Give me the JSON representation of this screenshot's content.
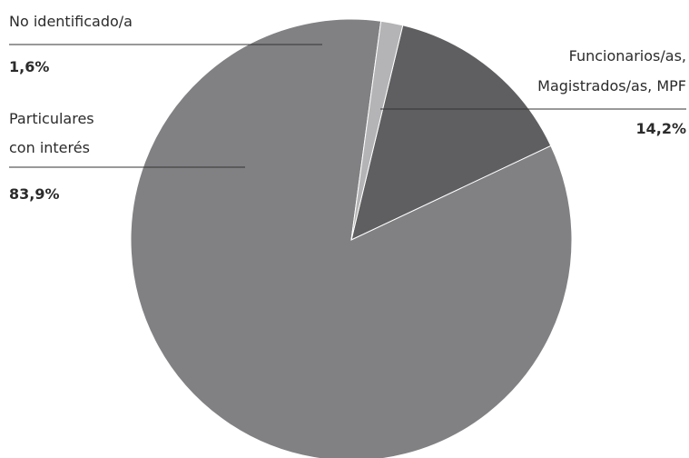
{
  "chart_data": {
    "type": "pie",
    "slices": [
      {
        "label": [
          "Funcionarios/as,",
          "Magistrados/as, MPF"
        ],
        "value": 14.2,
        "value_label": "14,2%",
        "color": "#5f5f61"
      },
      {
        "label": [
          "Particulares",
          "con interés"
        ],
        "value": 83.9,
        "value_label": "83,9%",
        "color": "#818184"
      },
      {
        "label": [
          "No identificado/a"
        ],
        "value": 1.6,
        "value_label": "1,6%",
        "color": "#b4b4b6"
      }
    ],
    "start_angle_deg": 13.5,
    "direction": "clockwise",
    "legend": "none",
    "labels": "outside-with-leader-lines"
  }
}
